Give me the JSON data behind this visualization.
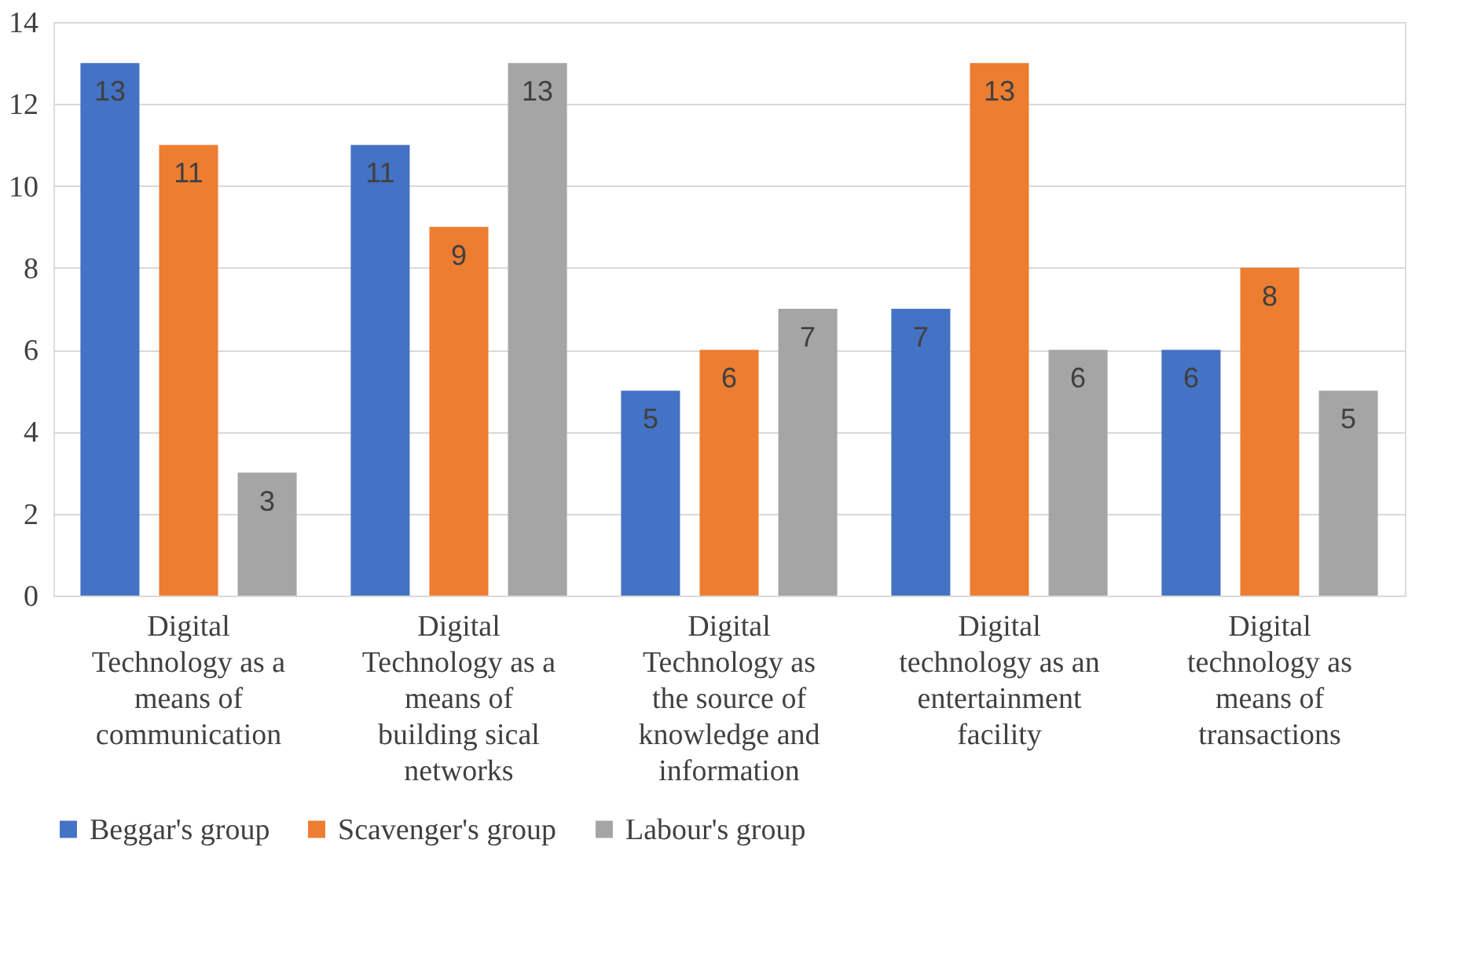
{
  "chart_data": {
    "type": "bar",
    "categories": [
      "Digital Technology as a means of communication",
      "Digital Technology as a means of building sical networks",
      "Digital Technology as the source of knowledge and information",
      "Digital technology as an entertainment facility",
      "Digital technology as means of transactions"
    ],
    "series": [
      {
        "name": "Beggar's group",
        "color": "#4472c4",
        "values": [
          13,
          11,
          5,
          7,
          6
        ]
      },
      {
        "name": "Scavenger's group",
        "color": "#ed7d31",
        "values": [
          11,
          9,
          6,
          13,
          8
        ]
      },
      {
        "name": "Labour's group",
        "color": "#a5a5a5",
        "values": [
          3,
          13,
          7,
          6,
          5
        ]
      }
    ],
    "ylim": [
      0,
      14
    ],
    "yticks": [
      0,
      2,
      4,
      6,
      8,
      10,
      12,
      14
    ],
    "grid": "y",
    "legend": "bottom",
    "data_labels": true
  }
}
